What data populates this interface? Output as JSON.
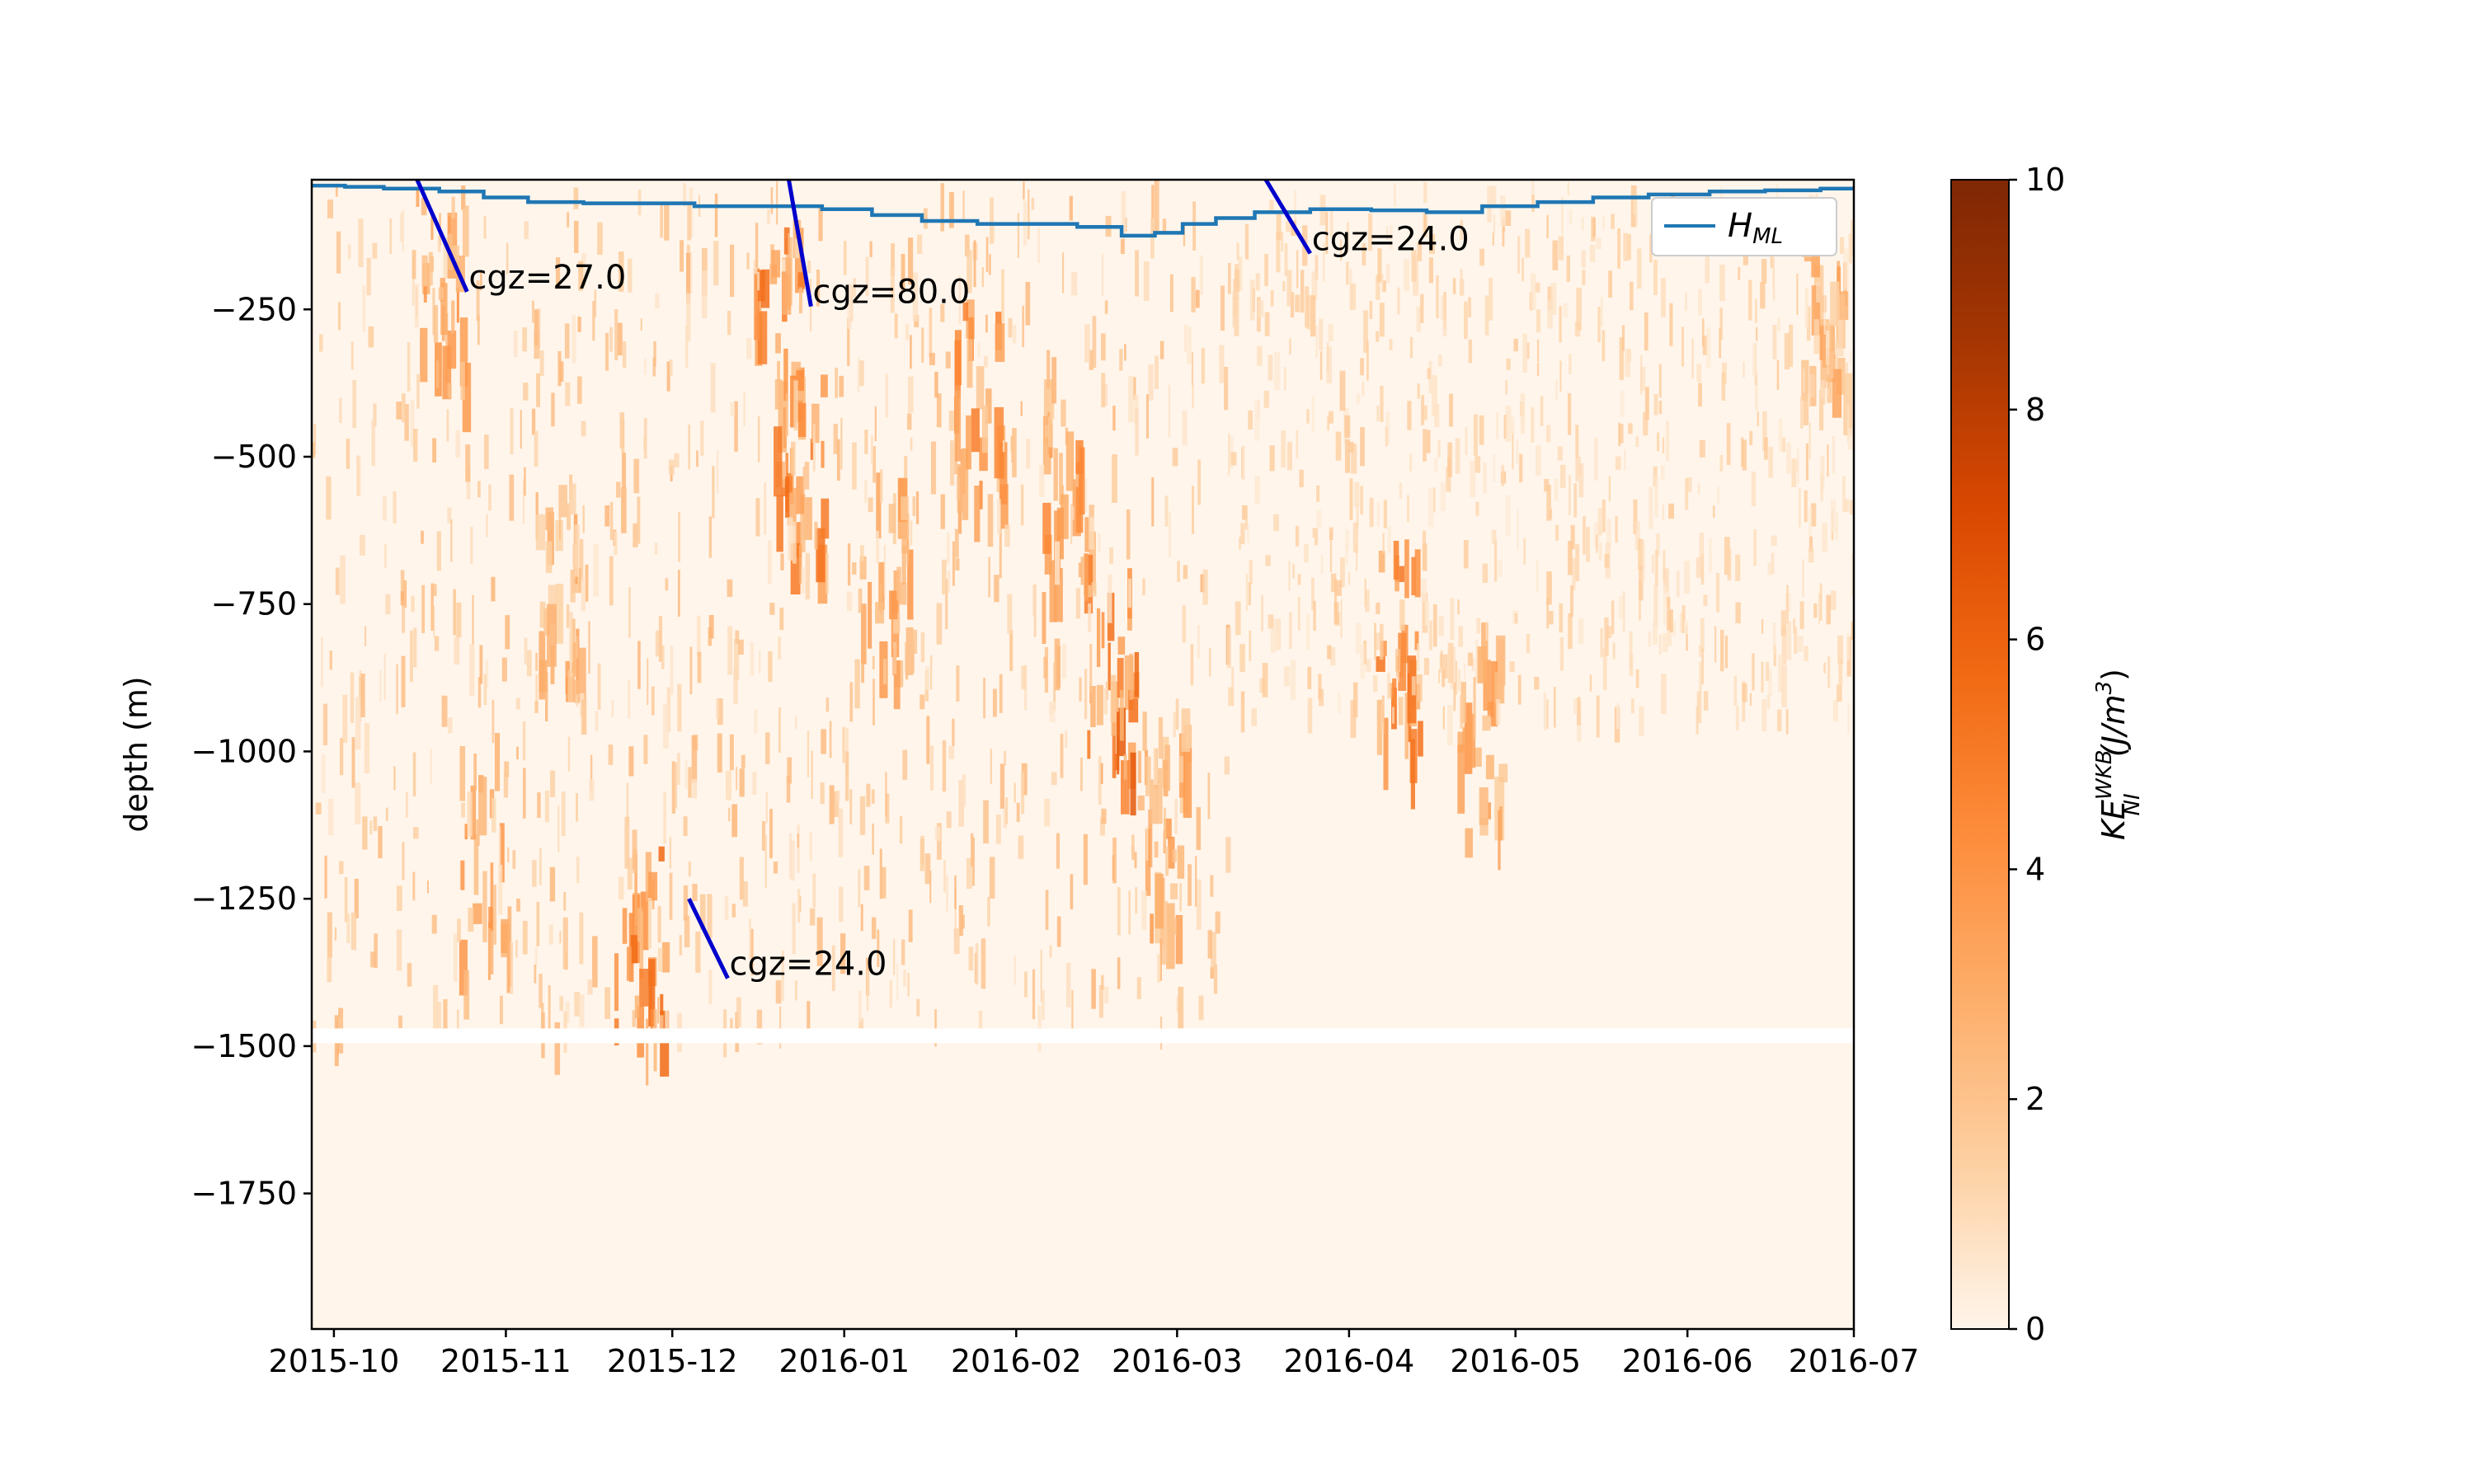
{
  "chart_data": {
    "type": "heatmap",
    "title": "",
    "xlabel": "",
    "ylabel": "depth (m)",
    "x_range": [
      "2015-09-27",
      "2016-07-01"
    ],
    "ylim": [
      -1980,
      -30
    ],
    "x_ticks": [
      "2015-10",
      "2015-11",
      "2015-12",
      "2016-01",
      "2016-02",
      "2016-03",
      "2016-04",
      "2016-05",
      "2016-06",
      "2016-07"
    ],
    "y_ticks": [
      -250,
      -500,
      -750,
      -1000,
      -1250,
      -1500,
      -1750
    ],
    "y_tick_labels": [
      "−250",
      "−500",
      "−750",
      "−1000",
      "−1250",
      "−1500",
      "−1750"
    ],
    "colorbar": {
      "label_main": "KE",
      "label_sup": "WKB",
      "label_sub": "NI",
      "label_units": "(J/m",
      "label_units_sup": "3",
      "label_close": ")",
      "min": 0,
      "max": 10,
      "ticks": [
        0,
        2,
        4,
        6,
        8,
        10
      ],
      "colormap": "Oranges",
      "colors": [
        "#fff5eb",
        "#fdd0a2",
        "#fdae6b",
        "#fd8d3c",
        "#f16913",
        "#d94801",
        "#a63603",
        "#7f2704"
      ]
    },
    "missing_depth_band": [
      -1495,
      -1470
    ],
    "series": [
      {
        "name": "H_ML",
        "legend_main": "H",
        "legend_sub": "ML",
        "color": "#1f77b4",
        "x": [
          "2015-09-27",
          "2015-10-03",
          "2015-10-10",
          "2015-10-20",
          "2015-10-28",
          "2015-11-05",
          "2015-11-15",
          "2015-11-25",
          "2015-12-05",
          "2015-12-18",
          "2015-12-28",
          "2016-01-06",
          "2016-01-15",
          "2016-01-25",
          "2016-02-05",
          "2016-02-12",
          "2016-02-20",
          "2016-02-26",
          "2016-03-02",
          "2016-03-08",
          "2016-03-15",
          "2016-03-25",
          "2016-04-05",
          "2016-04-15",
          "2016-04-25",
          "2016-05-05",
          "2016-05-15",
          "2016-05-25",
          "2016-06-05",
          "2016-06-15",
          "2016-06-25",
          "2016-07-01"
        ],
        "y": [
          -40,
          -42,
          -45,
          -50,
          -60,
          -68,
          -70,
          -70,
          -75,
          -75,
          -80,
          -90,
          -100,
          -105,
          -105,
          -110,
          -125,
          -120,
          -105,
          -95,
          -85,
          -80,
          -82,
          -85,
          -75,
          -68,
          -60,
          -55,
          -50,
          -48,
          -45,
          -45
        ]
      }
    ],
    "annotations": [
      {
        "text": "cgz=27.0",
        "line_start": [
          "2015-10-16",
          -30
        ],
        "line_end": [
          "2015-10-25",
          -220
        ]
      },
      {
        "text": "cgz=80.0",
        "line_start": [
          "2015-12-22",
          -30
        ],
        "line_end": [
          "2015-12-26",
          -245
        ]
      },
      {
        "text": "cgz=24.0",
        "line_start": [
          "2016-03-17",
          -30
        ],
        "line_end": [
          "2016-03-25",
          -155
        ]
      },
      {
        "text": "cgz=24.0",
        "line_start": [
          "2015-12-04",
          -1250
        ],
        "line_end": [
          "2015-12-11",
          -1385
        ]
      }
    ],
    "annotation_line_color": "#0000cc",
    "grid": false,
    "legend_position": "top-right"
  }
}
